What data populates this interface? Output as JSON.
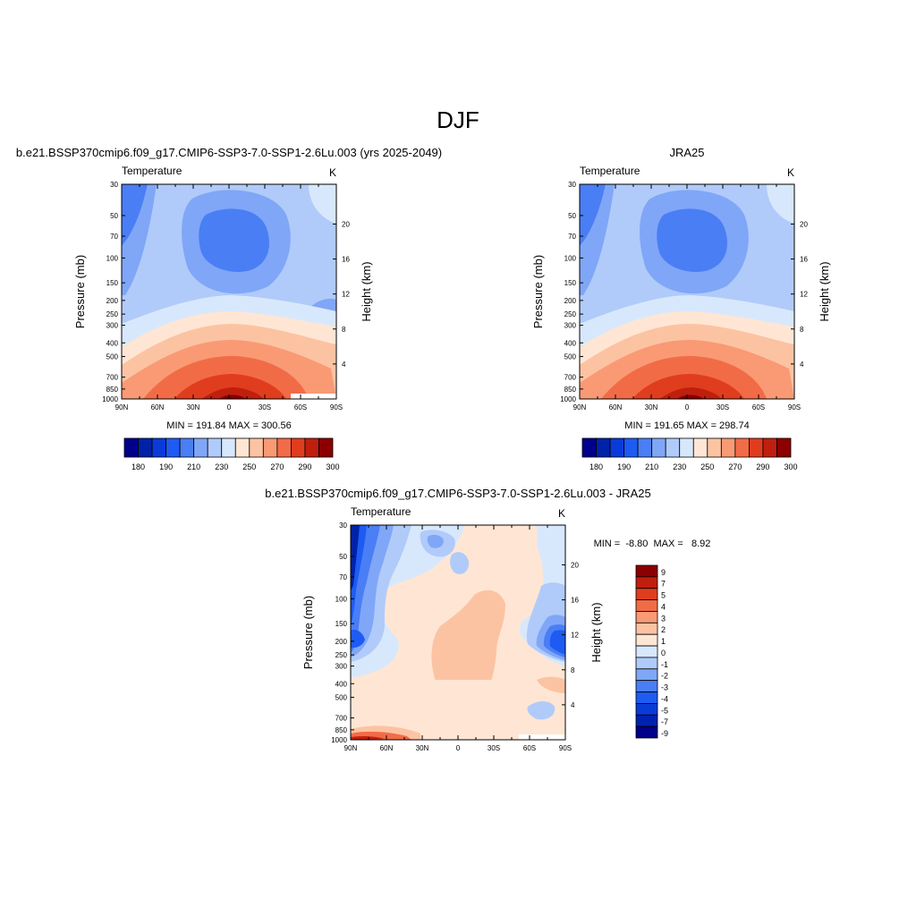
{
  "figure": {
    "title": "DJF"
  },
  "colormaps": {
    "absolute": [
      "#00008b",
      "#0022a8",
      "#0a3bd9",
      "#1d5bf2",
      "#4a7ef5",
      "#80a6f7",
      "#b0cbfa",
      "#d8e8fc",
      "#ffe6d4",
      "#fcc3a3",
      "#f99a74",
      "#f26b47",
      "#e03d1e",
      "#c01f0e",
      "#8b0000"
    ],
    "diff": [
      "#00008b",
      "#0022b0",
      "#0a3bd9",
      "#1d5bf2",
      "#4a7ef5",
      "#80a6f7",
      "#b0cbfa",
      "#d8e8fc",
      "#ffe6d4",
      "#fcc3a3",
      "#f99a74",
      "#f26b47",
      "#e03d1e",
      "#c01f0e",
      "#8b0000"
    ]
  },
  "chart_data": [
    {
      "type": "contour",
      "panel": "model",
      "title": "b.e21.BSSP370cmip6.f09_g17.CMIP6-SSP3-7.0-SSP1-2.6Lu.003 (yrs 2025-2049)",
      "left_label": "Temperature",
      "right_label": "K",
      "xlabel": "",
      "ylabel": "Pressure (mb)",
      "ylabel_right": "Height (km)",
      "x_ticks": [
        "90N",
        "60N",
        "30N",
        "0",
        "30S",
        "60S",
        "90S"
      ],
      "y_ticks": [
        30,
        50,
        70,
        100,
        150,
        200,
        250,
        300,
        400,
        500,
        700,
        850,
        1000
      ],
      "y_right_ticks": [
        4,
        8,
        12,
        16,
        20
      ],
      "ylim": [
        1000,
        30
      ],
      "y_scale": "log",
      "min_max_text": "MIN = 191.84  MAX = 300.56",
      "colorbar_labels": [
        "180",
        "190",
        "210",
        "230",
        "250",
        "270",
        "290",
        "300"
      ],
      "colorbar_orientation": "horizontal",
      "field_range": [
        191.84,
        300.56
      ]
    },
    {
      "type": "contour",
      "panel": "obs",
      "title": "JRA25",
      "left_label": "Temperature",
      "right_label": "K",
      "xlabel": "",
      "ylabel": "Pressure (mb)",
      "ylabel_right": "Height (km)",
      "x_ticks": [
        "90N",
        "60N",
        "30N",
        "0",
        "30S",
        "60S",
        "90S"
      ],
      "y_ticks": [
        30,
        50,
        70,
        100,
        150,
        200,
        250,
        300,
        400,
        500,
        700,
        850,
        1000
      ],
      "y_right_ticks": [
        4,
        8,
        12,
        16,
        20
      ],
      "ylim": [
        1000,
        30
      ],
      "y_scale": "log",
      "min_max_text": "MIN = 191.65  MAX = 298.74",
      "colorbar_labels": [
        "180",
        "190",
        "210",
        "230",
        "250",
        "270",
        "290",
        "300"
      ],
      "colorbar_orientation": "horizontal",
      "field_range": [
        191.65,
        298.74
      ]
    },
    {
      "type": "contour",
      "panel": "diff",
      "title": "b.e21.BSSP370cmip6.f09_g17.CMIP6-SSP3-7.0-SSP1-2.6Lu.003 - JRA25",
      "left_label": "Temperature",
      "right_label": "K",
      "xlabel": "",
      "ylabel": "Pressure (mb)",
      "ylabel_right": "Height (km)",
      "x_ticks": [
        "90N",
        "60N",
        "30N",
        "0",
        "30S",
        "60S",
        "90S"
      ],
      "y_ticks": [
        30,
        50,
        70,
        100,
        150,
        200,
        250,
        300,
        400,
        500,
        700,
        850,
        1000
      ],
      "y_right_ticks": [
        4,
        8,
        12,
        16,
        20
      ],
      "ylim": [
        1000,
        30
      ],
      "y_scale": "log",
      "min_max_text": "MIN =  -8.80  MAX =   8.92",
      "colorbar_labels": [
        "9",
        "7",
        "5",
        "4",
        "3",
        "2",
        "1",
        "0",
        "-1",
        "-2",
        "-3",
        "-4",
        "-5",
        "-7",
        "-9"
      ],
      "colorbar_orientation": "vertical",
      "field_range": [
        -8.8,
        8.92
      ]
    }
  ]
}
